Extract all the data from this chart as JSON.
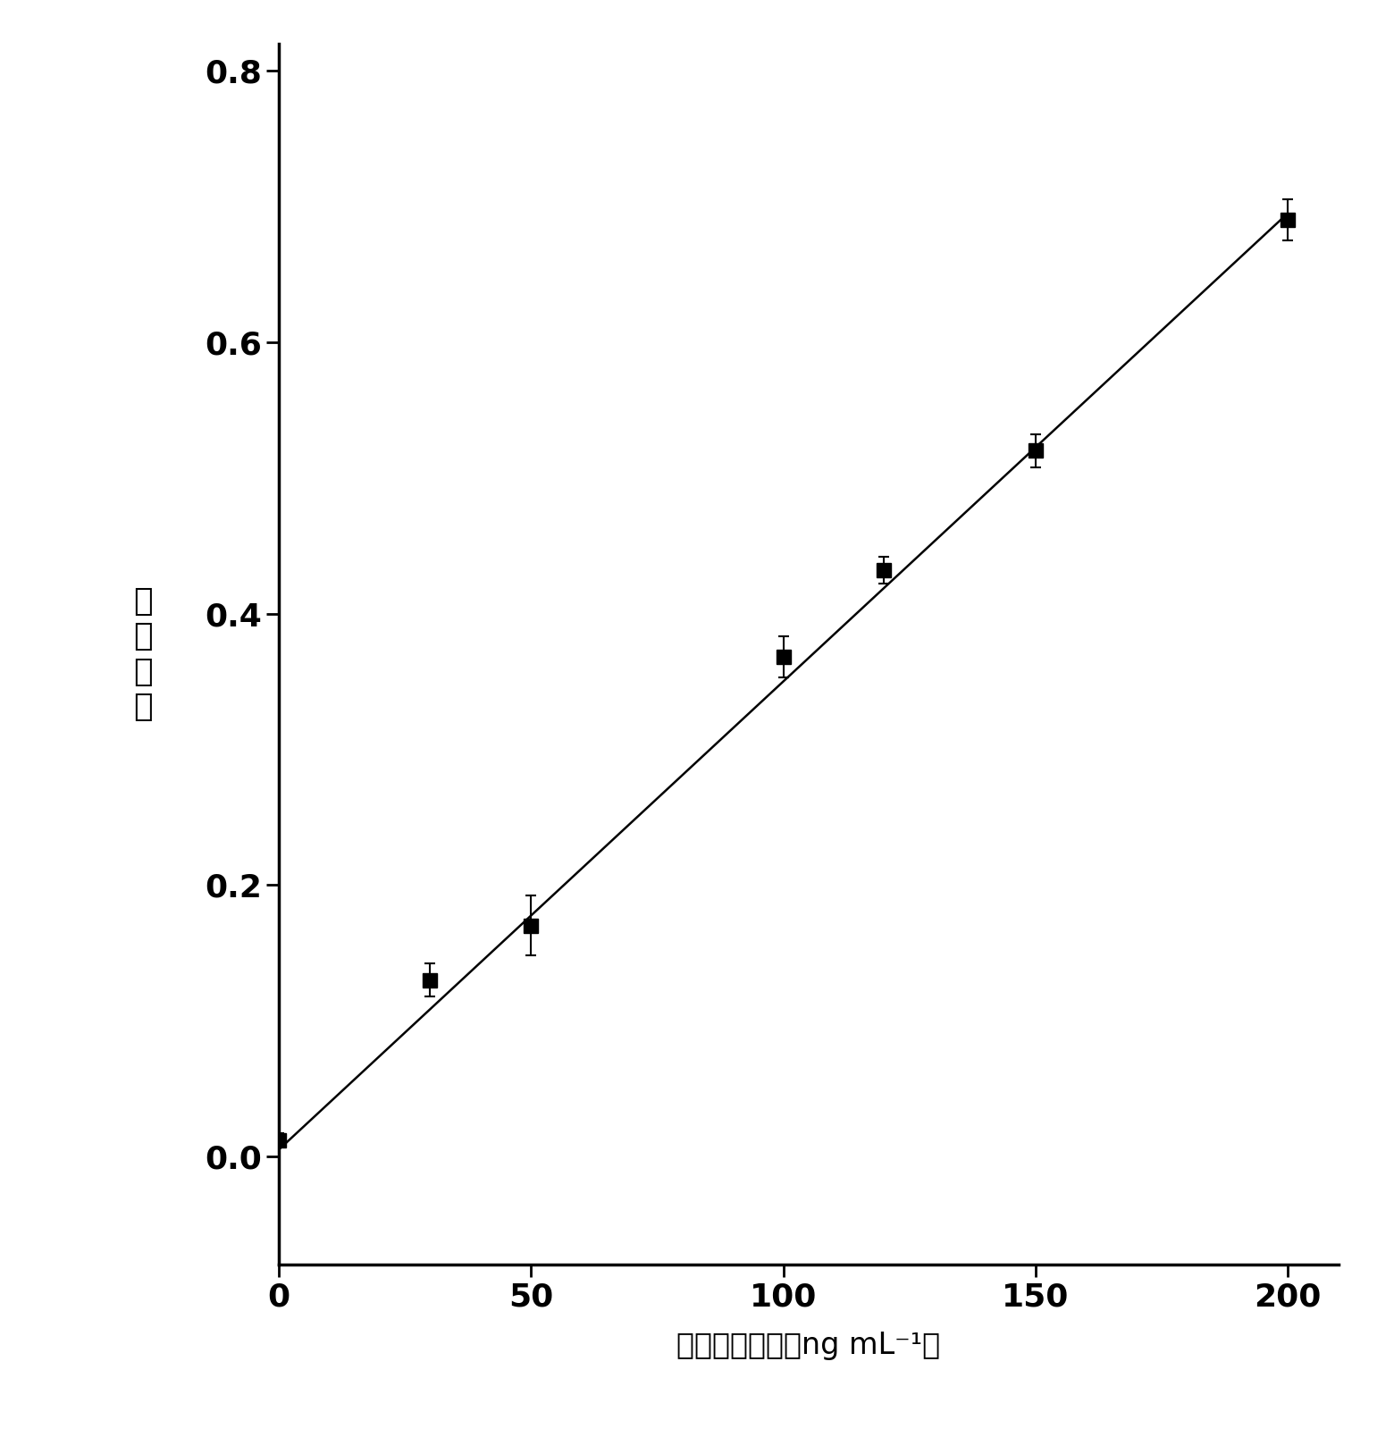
{
  "x": [
    0,
    30,
    50,
    100,
    120,
    150,
    200
  ],
  "y": [
    0.012,
    0.13,
    0.17,
    0.368,
    0.432,
    0.52,
    0.69
  ],
  "yerr": [
    0.005,
    0.012,
    0.022,
    0.015,
    0.01,
    0.012,
    0.015
  ],
  "fit_x": [
    0,
    200
  ],
  "fit_y": [
    0.005,
    0.695
  ],
  "xlabel": "胵蛋白酶浓度（ng mL⁻¹）",
  "ylabel_chars": [
    "吸",
    "光",
    "度",
    "差"
  ],
  "xlim": [
    0,
    210
  ],
  "ylim": [
    -0.08,
    0.82
  ],
  "xticks": [
    0,
    50,
    100,
    150,
    200
  ],
  "yticks": [
    0.0,
    0.2,
    0.4,
    0.6,
    0.8
  ],
  "marker_color": "#000000",
  "line_color": "#000000",
  "marker_size": 11,
  "marker": "s",
  "linewidth": 1.8,
  "capsize": 4,
  "background_color": "#ffffff",
  "xlabel_fontsize": 24,
  "ylabel_fontsize": 26,
  "tick_fontsize": 26,
  "spine_linewidth": 2.5
}
